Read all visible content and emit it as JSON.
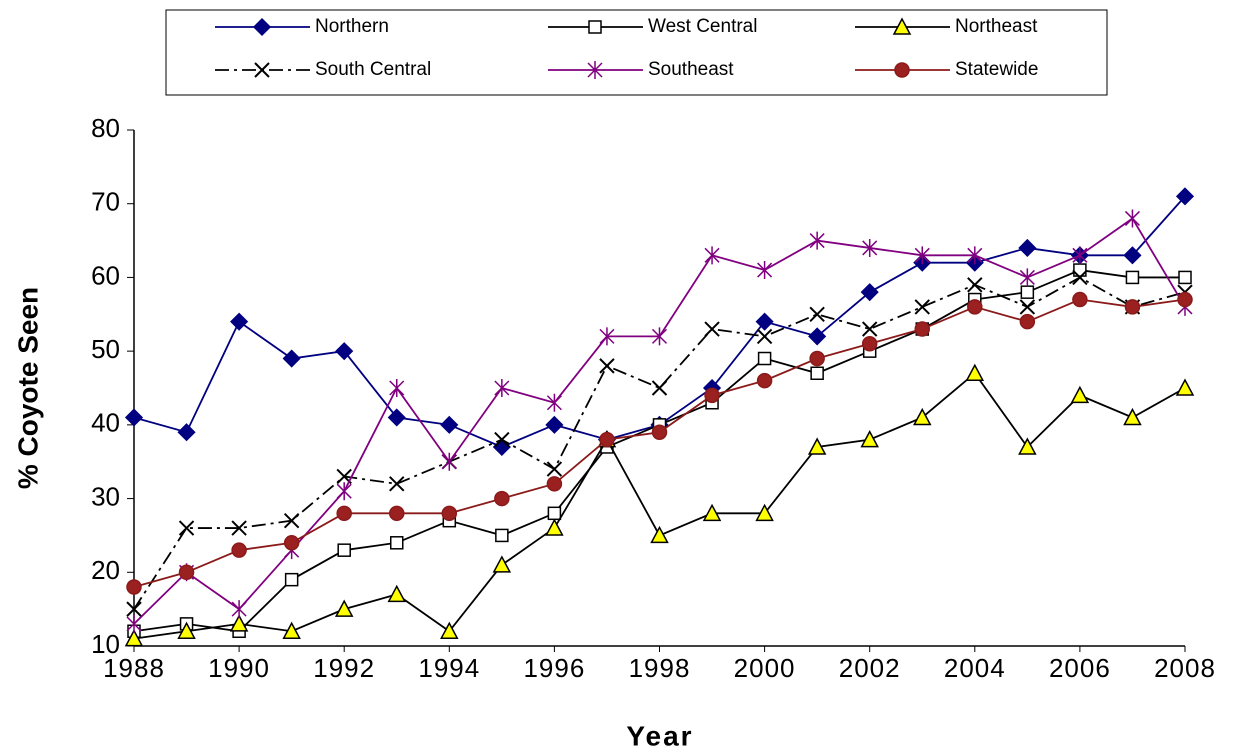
{
  "chart_data": {
    "type": "line",
    "x_label": "Year",
    "y_label": "% Coyote Seen",
    "x": [
      1988,
      1989,
      1990,
      1991,
      1992,
      1993,
      1994,
      1995,
      1996,
      1997,
      1998,
      1999,
      2000,
      2001,
      2002,
      2003,
      2004,
      2005,
      2006,
      2007,
      2008
    ],
    "xlim": [
      1988,
      2008
    ],
    "xticks": [
      1988,
      1990,
      1992,
      1994,
      1996,
      1998,
      2000,
      2002,
      2004,
      2006,
      2008
    ],
    "ylim": [
      10,
      80
    ],
    "yticks": [
      10,
      20,
      30,
      40,
      50,
      60,
      70,
      80
    ],
    "grid": false,
    "legend": "top",
    "series": [
      {
        "name": "Northern",
        "color": "#000080",
        "marker": "diamond",
        "marker_fill": "#000080",
        "dash": "solid",
        "values": [
          41,
          39,
          54,
          49,
          50,
          41,
          40,
          37,
          40,
          38,
          40,
          45,
          54,
          52,
          58,
          62,
          62,
          64,
          63,
          63,
          71
        ]
      },
      {
        "name": "West Central",
        "color": "#000000",
        "marker": "square",
        "marker_fill": "#ffffff",
        "dash": "solid",
        "values": [
          12,
          13,
          12,
          19,
          23,
          24,
          27,
          25,
          28,
          37,
          40,
          43,
          49,
          47,
          50,
          53,
          57,
          58,
          61,
          60,
          60
        ]
      },
      {
        "name": "Northeast",
        "color": "#000000",
        "marker": "triangle",
        "marker_fill": "#ffff00",
        "dash": "solid",
        "values": [
          11,
          12,
          13,
          12,
          15,
          17,
          12,
          21,
          26,
          38,
          25,
          28,
          28,
          37,
          38,
          41,
          47,
          37,
          44,
          41,
          45
        ]
      },
      {
        "name": "South Central",
        "color": "#000000",
        "marker": "x",
        "marker_fill": "none",
        "dash": "dashdot",
        "values": [
          15,
          26,
          26,
          27,
          33,
          32,
          35,
          38,
          34,
          48,
          45,
          53,
          52,
          55,
          53,
          56,
          59,
          56,
          60,
          56,
          58
        ]
      },
      {
        "name": "Southeast",
        "color": "#800080",
        "marker": "asterisk",
        "marker_fill": "none",
        "dash": "solid",
        "values": [
          13,
          20,
          15,
          23,
          31,
          45,
          35,
          45,
          43,
          52,
          52,
          63,
          61,
          65,
          64,
          63,
          63,
          60,
          63,
          68,
          56
        ]
      },
      {
        "name": "Statewide",
        "color": "#8b1a1a",
        "marker": "circle",
        "marker_fill": "#9b2020",
        "dash": "solid",
        "values": [
          18,
          20,
          23,
          24,
          28,
          28,
          28,
          30,
          32,
          38,
          39,
          44,
          46,
          49,
          51,
          53,
          56,
          54,
          57,
          56,
          57
        ]
      }
    ]
  }
}
